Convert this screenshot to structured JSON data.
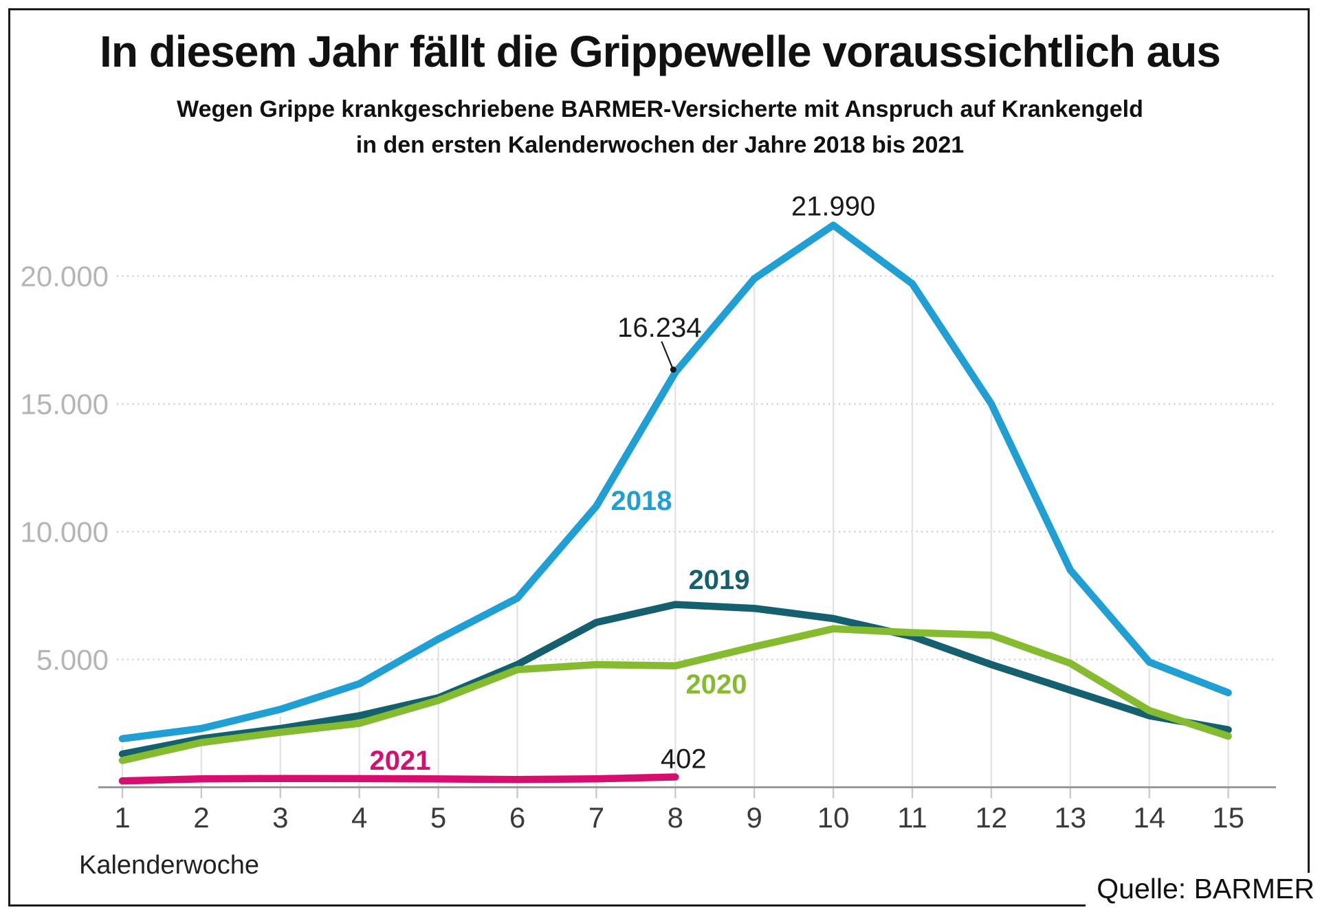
{
  "title": "In diesem Jahr fällt die Grippewelle voraussichtlich aus",
  "subtitle_line1": "Wegen Grippe krankgeschriebene BARMER-Versicherte mit Anspruch auf Krankengeld",
  "subtitle_line2": "in den ersten Kalenderwochen der Jahre 2018 bis 2021",
  "source": "Quelle: BARMER",
  "x_axis_label": "Kalenderwoche",
  "colors": {
    "series_2018": "#1f9fd4",
    "series_2019": "#14606e",
    "series_2020": "#85bc2f",
    "series_2021": "#d60e6e",
    "y_tick_label": "#b5b5b5",
    "x_tick_label": "#3a3a3a",
    "axis_line": "#999999",
    "h_gridline": "#cfcfcf",
    "v_gridline": "#e3e3e3",
    "annotation_text": "#1a1a1a"
  },
  "chart_data": {
    "type": "line",
    "x": [
      1,
      2,
      3,
      4,
      5,
      6,
      7,
      8,
      9,
      10,
      11,
      12,
      13,
      14,
      15
    ],
    "xlabel": "Kalenderwoche",
    "ylabel": "",
    "ylim": [
      0,
      23500
    ],
    "yticks": [
      5000,
      10000,
      15000,
      20000
    ],
    "ytick_labels": [
      "5.000",
      "10.000",
      "15.000",
      "20.000"
    ],
    "grid": "horizontal-dotted and vertical-week-lines",
    "legend_position": "inline-labels-on-lines",
    "series": [
      {
        "name": "2018",
        "color": "#1f9fd4",
        "values": [
          1900,
          2300,
          3050,
          4050,
          5800,
          7400,
          11000,
          16234,
          19900,
          21990,
          19700,
          15000,
          8500,
          4900,
          3700
        ]
      },
      {
        "name": "2019",
        "color": "#14606e",
        "values": [
          1300,
          1900,
          2300,
          2800,
          3500,
          4800,
          6450,
          7150,
          7000,
          6600,
          5900,
          4800,
          3800,
          2800,
          2250
        ]
      },
      {
        "name": "2020",
        "color": "#85bc2f",
        "values": [
          1050,
          1750,
          2150,
          2500,
          3400,
          4600,
          4800,
          4750,
          5500,
          6200,
          6050,
          5950,
          4850,
          3000,
          2000
        ]
      },
      {
        "name": "2021",
        "color": "#d60e6e",
        "values": [
          250,
          330,
          345,
          340,
          325,
          305,
          330,
          402
        ]
      }
    ],
    "annotations": [
      {
        "text": "21.990",
        "series": "2018",
        "week": 10,
        "value": 21990
      },
      {
        "text": "16.234",
        "series": "2018",
        "week": 8,
        "value": 16234,
        "connector": true
      },
      {
        "text": "402",
        "series": "2021",
        "week": 8,
        "value": 402
      }
    ]
  }
}
